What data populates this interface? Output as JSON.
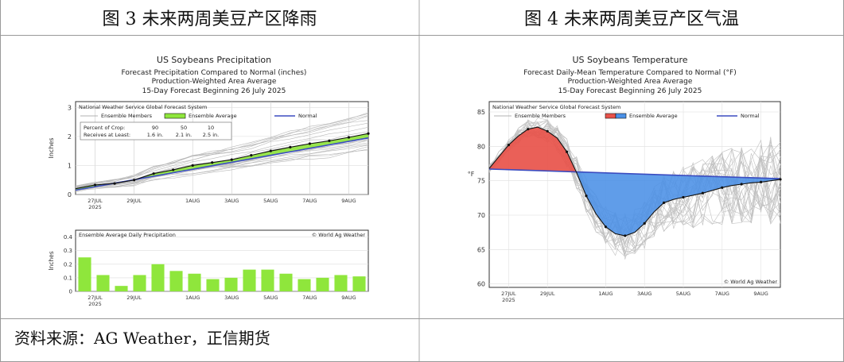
{
  "left_caption": "图 3 未来两周美豆产区降雨",
  "right_caption": "图 4 未来两周美豆产区气温",
  "source": "资料来源：AG Weather，正信期货",
  "chart_data": [
    {
      "type": "line",
      "title": "US Soybeans Precipitation",
      "subtitle_lines": [
        "Forecast Precipitation Compared to Normal (inches)",
        "Production-Weighted Area Average",
        "15-Day Forecast Beginning 26 July 2025"
      ],
      "ylabel": "Inches",
      "ylim": [
        0,
        3.2
      ],
      "yticks": [
        0,
        1,
        2,
        3
      ],
      "x_tick_labels": [
        "27JUL",
        "29JUL",
        "1AUG",
        "3AUG",
        "5AUG",
        "7AUG",
        "9AUG"
      ],
      "x_tick_positions": [
        1,
        3,
        6,
        8,
        10,
        12,
        14
      ],
      "year_label": "2025",
      "xlim": [
        0,
        15
      ],
      "legend_header": "National Weather Service Global Forecast System",
      "legend": {
        "members": "Ensemble Members",
        "average": "Ensemble Average",
        "normal": "Normal"
      },
      "percent_box": {
        "row1_label": "Percent of Crop:",
        "row1_values": [
          "90",
          "50",
          "10"
        ],
        "row2_label": "Receives at Least:",
        "row2_values": [
          "1.6 in.",
          "2.1 in.",
          "2.5 in."
        ]
      },
      "series": [
        {
          "name": "Ensemble Average",
          "x": [
            0,
            1,
            2,
            3,
            4,
            5,
            6,
            7,
            8,
            9,
            10,
            11,
            12,
            13,
            14,
            15
          ],
          "values": [
            0.2,
            0.33,
            0.38,
            0.5,
            0.72,
            0.85,
            1.0,
            1.1,
            1.2,
            1.35,
            1.5,
            1.63,
            1.75,
            1.85,
            1.97,
            2.1
          ]
        },
        {
          "name": "Normal",
          "x": [
            0,
            15
          ],
          "values": [
            0.15,
            1.95
          ]
        }
      ],
      "color_average": "#8fe63c",
      "color_normal": "#3b4cc0",
      "daily": {
        "title": "Ensemble Average Daily Precipitation",
        "credit": "© World Ag Weather",
        "ylabel": "Inches",
        "ylim": [
          0,
          0.45
        ],
        "yticks": [
          0,
          0.1,
          0.2,
          0.3,
          0.4
        ],
        "ytick_labels": [
          "0",
          "0.1",
          "0.2",
          "0.3",
          "0.4"
        ],
        "values": [
          0.25,
          0.12,
          0.04,
          0.12,
          0.2,
          0.15,
          0.13,
          0.09,
          0.1,
          0.16,
          0.16,
          0.13,
          0.09,
          0.1,
          0.12,
          0.11
        ],
        "bar_color": "#8fe63c"
      }
    },
    {
      "type": "line",
      "title": "US Soybeans Temperature",
      "subtitle_lines": [
        "Forecast Daily-Mean Temperature Compared to Normal (°F)",
        "Production-Weighted Area Average",
        "15-Day Forecast Beginning 26 July 2025"
      ],
      "ylabel": "°F",
      "ylim": [
        59.5,
        86.5
      ],
      "yticks": [
        60,
        65,
        70,
        75,
        80,
        85
      ],
      "x_tick_labels": [
        "27JUL",
        "29JUL",
        "1AUG",
        "3AUG",
        "5AUG",
        "7AUG",
        "9AUG"
      ],
      "x_tick_positions": [
        1,
        3,
        6,
        8,
        10,
        12,
        14
      ],
      "year_label": "2025",
      "xlim": [
        0,
        15
      ],
      "legend_header": "National Weather Service Global Forecast System",
      "legend": {
        "members": "Ensemble Members",
        "average": "Ensemble Average",
        "normal": "Normal"
      },
      "credit": "© World Ag Weather",
      "series": [
        {
          "name": "Ensemble Average",
          "x": [
            0,
            0.5,
            1,
            1.5,
            2,
            2.5,
            3,
            3.5,
            4,
            4.5,
            5,
            5.5,
            6,
            6.5,
            7,
            7.5,
            8,
            8.5,
            9,
            9.5,
            10,
            10.5,
            11,
            11.5,
            12,
            12.5,
            13,
            13.5,
            14,
            14.5,
            15
          ],
          "values": [
            76.8,
            78.5,
            80.2,
            81.5,
            82.5,
            82.8,
            82.2,
            81.2,
            79.2,
            76.2,
            72.8,
            70.2,
            68.3,
            67.3,
            67.0,
            67.5,
            68.8,
            70.5,
            71.8,
            72.3,
            72.6,
            72.9,
            73.2,
            73.6,
            74.0,
            74.3,
            74.5,
            74.7,
            74.8,
            75.0,
            75.2
          ]
        },
        {
          "name": "Normal",
          "x": [
            0,
            15
          ],
          "values": [
            76.7,
            75.3
          ]
        }
      ],
      "color_warm": "#e8524a",
      "color_cool": "#4a90e6",
      "color_normal": "#3b4cc0"
    }
  ]
}
